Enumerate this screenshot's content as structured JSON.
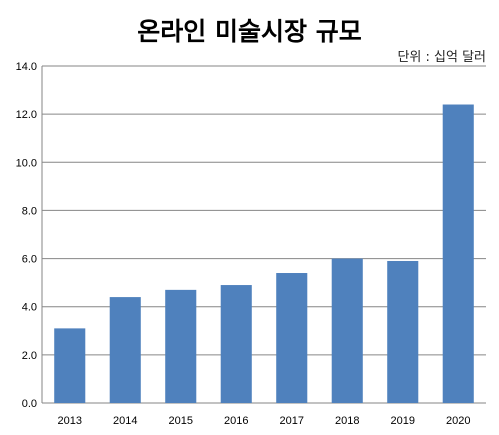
{
  "chart_data": {
    "type": "bar",
    "title": "온라인 미술시장 규모",
    "unit_label": "단위 : 십억 달러",
    "xlabel": "",
    "ylabel": "",
    "categories": [
      "2013",
      "2014",
      "2015",
      "2016",
      "2017",
      "2018",
      "2019",
      "2020"
    ],
    "values": [
      3.1,
      4.4,
      4.7,
      4.9,
      5.4,
      6.0,
      5.9,
      12.4
    ],
    "ylim": [
      0,
      14
    ],
    "yticks": [
      "0.0",
      "2.0",
      "4.0",
      "6.0",
      "8.0",
      "10.0",
      "12.0",
      "14.0"
    ],
    "grid": true,
    "legend": "none",
    "bar_color": "#4f81bd",
    "grid_color": "#868686"
  }
}
